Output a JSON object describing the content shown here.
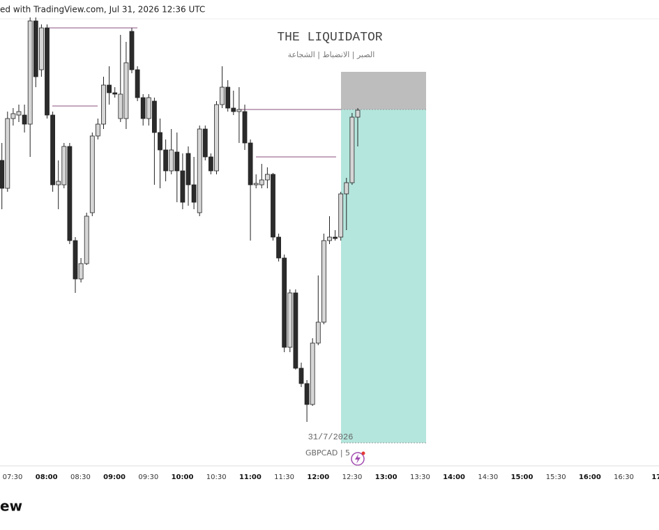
{
  "header": {
    "text": "ed with TradingView.com, Jul 31, 2026 12:36 UTC"
  },
  "watermark": {
    "title": "THE LIQUIDATOR",
    "subtitle": "الصبر | الانضباط | الشجاعة"
  },
  "date_label": "31/7/2026",
  "symbol": "GBPCAD | 5",
  "time_axis": [
    "07:30",
    "08:00",
    "08:30",
    "09:00",
    "09:30",
    "10:00",
    "10:30",
    "11:00",
    "11:30",
    "12:00",
    "12:30",
    "13:00",
    "13:30",
    "14:00",
    "14:30",
    "15:00",
    "15:30",
    "16:00",
    "16:30",
    "17:"
  ],
  "footer": {
    "logo": "ew"
  }
}
